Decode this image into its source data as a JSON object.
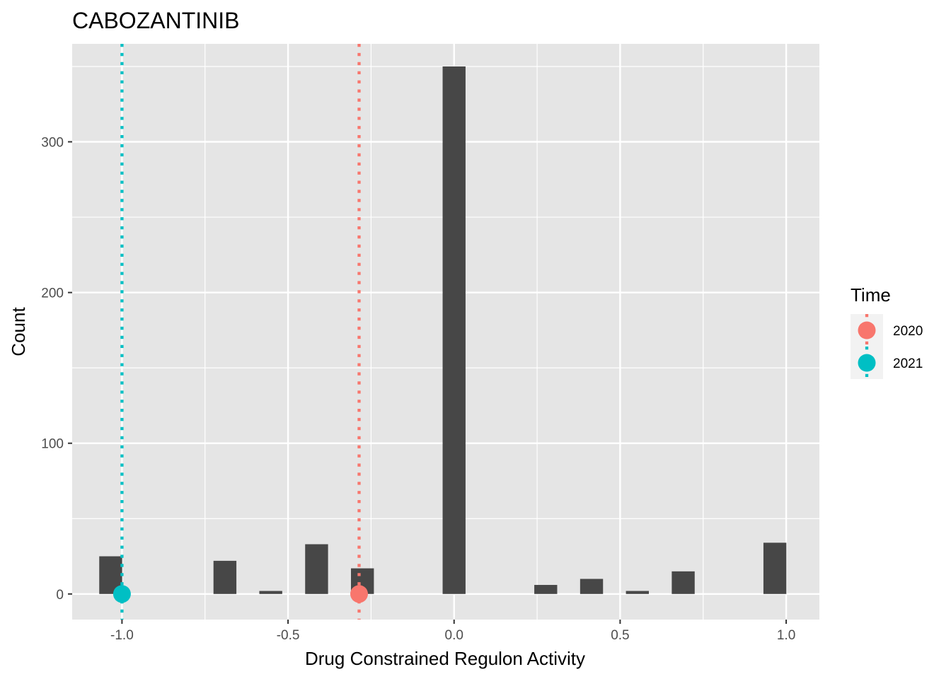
{
  "chart_data": {
    "type": "bar",
    "title": "CABOZANTINIB",
    "xlabel": "Drug Constrained Regulon Activity",
    "ylabel": "Count",
    "xlim": [
      -1.15,
      1.1
    ],
    "ylim": [
      -17,
      365
    ],
    "x_ticks": [
      -1.0,
      -0.5,
      0.0,
      0.5,
      1.0
    ],
    "x_tick_labels": [
      "-1.0",
      "-0.5",
      "0.0",
      "0.5",
      "1.0"
    ],
    "y_ticks": [
      0,
      100,
      200,
      300
    ],
    "y_tick_labels": [
      "0",
      "100",
      "200",
      "300"
    ],
    "grid": true,
    "bin_width": 0.069,
    "bins": [
      {
        "x": -1.034,
        "count": 25
      },
      {
        "x": -0.69,
        "count": 22
      },
      {
        "x": -0.552,
        "count": 2
      },
      {
        "x": -0.414,
        "count": 33
      },
      {
        "x": -0.276,
        "count": 17
      },
      {
        "x": 0.0,
        "count": 350
      },
      {
        "x": 0.276,
        "count": 6
      },
      {
        "x": 0.414,
        "count": 10
      },
      {
        "x": 0.552,
        "count": 2
      },
      {
        "x": 0.69,
        "count": 15
      },
      {
        "x": 0.966,
        "count": 34
      }
    ],
    "markers": [
      {
        "time": "2020",
        "x": -0.286,
        "y": 0,
        "color": "#F8766D"
      },
      {
        "time": "2021",
        "x": -1.0,
        "y": 0,
        "color": "#00BFC4"
      }
    ],
    "bar_color": "#474747",
    "panel_background": "#E5E5E5",
    "legend": {
      "title": "Time",
      "position": "right",
      "entries": [
        {
          "label": "2020",
          "color": "#F8766D"
        },
        {
          "label": "2021",
          "color": "#00BFC4"
        }
      ]
    }
  }
}
